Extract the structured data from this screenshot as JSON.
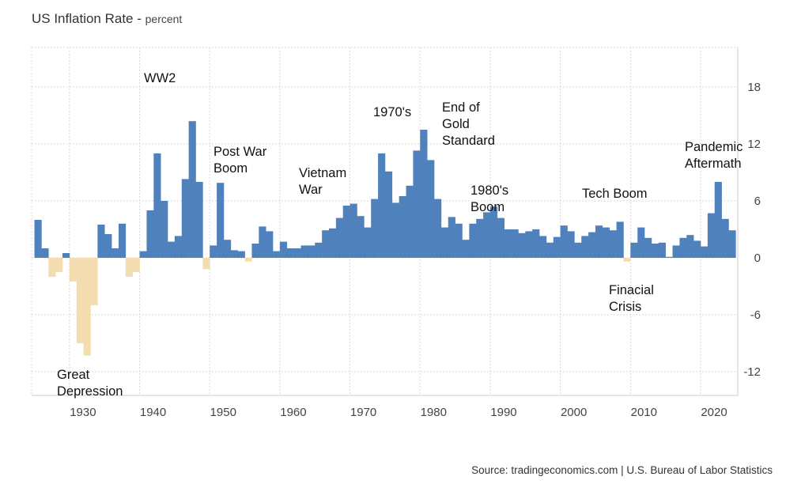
{
  "title": "US Inflation Rate",
  "subtitle": "percent",
  "source": "Source: tradingeconomics.com | U.S. Bureau of Labor Statistics",
  "colors": {
    "positive": "#4f81bd",
    "negative": "#f3dcb0",
    "grid": "#d9d9d9"
  },
  "chart_data": {
    "type": "bar",
    "title": "US Inflation Rate - percent",
    "xlabel": "",
    "ylabel": "percent",
    "xlim": [
      1924.6,
      2025.3
    ],
    "ylim": [
      -14.5,
      22
    ],
    "x_ticks": [
      "1930",
      "1940",
      "1950",
      "1960",
      "1970",
      "1980",
      "1990",
      "2000",
      "2010",
      "2020"
    ],
    "y_ticks": [
      "18",
      "12",
      "6",
      "0",
      "-6",
      "-12"
    ],
    "grid": true,
    "start_year": 1925,
    "values": [
      4.0,
      1.0,
      -2.0,
      -1.5,
      0.5,
      -2.5,
      -9.0,
      -10.3,
      -5.0,
      3.5,
      2.5,
      1.0,
      3.6,
      -2.0,
      -1.5,
      0.7,
      5.0,
      11.0,
      6.0,
      1.7,
      2.3,
      8.3,
      14.4,
      8.0,
      -1.2,
      1.3,
      7.9,
      1.9,
      0.8,
      0.7,
      -0.4,
      1.5,
      3.3,
      2.8,
      0.7,
      1.7,
      1.0,
      1.0,
      1.3,
      1.3,
      1.6,
      2.9,
      3.1,
      4.2,
      5.5,
      5.7,
      4.4,
      3.2,
      6.2,
      11.0,
      9.1,
      5.8,
      6.5,
      7.6,
      11.3,
      13.5,
      10.3,
      6.2,
      3.2,
      4.3,
      3.6,
      1.9,
      3.6,
      4.1,
      4.8,
      5.4,
      4.2,
      3.0,
      3.0,
      2.6,
      2.8,
      3.0,
      2.3,
      1.6,
      2.2,
      3.4,
      2.8,
      1.6,
      2.3,
      2.7,
      3.4,
      3.2,
      2.9,
      3.8,
      -0.4,
      1.6,
      3.2,
      2.1,
      1.5,
      1.6,
      0.1,
      1.3,
      2.1,
      2.4,
      1.8,
      1.2,
      4.7,
      8.0,
      4.1,
      2.9
    ],
    "annotations": [
      {
        "lines": [
          "WW2"
        ]
      },
      {
        "lines": [
          "Post War",
          "Boom"
        ]
      },
      {
        "lines": [
          "Vietnam",
          "War"
        ]
      },
      {
        "lines": [
          "1970's"
        ]
      },
      {
        "lines": [
          "End of",
          "Gold",
          "Standard"
        ]
      },
      {
        "lines": [
          "1980's",
          "Boom"
        ]
      },
      {
        "lines": [
          "Tech Boom"
        ]
      },
      {
        "lines": [
          "Pandemic",
          "Aftermath"
        ]
      },
      {
        "lines": [
          "Finacial",
          "Crisis"
        ]
      },
      {
        "lines": [
          "Great",
          "Depression"
        ]
      }
    ]
  }
}
